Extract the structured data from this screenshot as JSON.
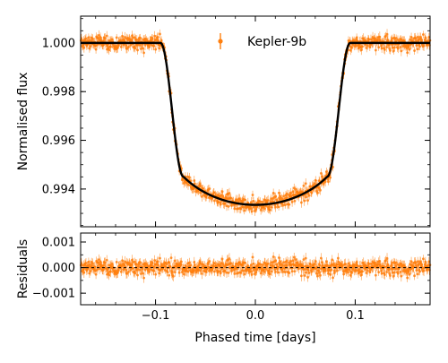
{
  "chart_data": {
    "type": "scatter",
    "colors": {
      "data": "#ff7f0e",
      "model": "#000000",
      "zero_line": "#000000"
    },
    "legend": {
      "placement": "top-right",
      "label": "Kepler-9b"
    },
    "x": {
      "label": "Phased time [days]",
      "lim": [
        -0.175,
        0.175
      ],
      "ticks": [
        -0.1,
        0.0,
        0.1
      ],
      "tick_labels": [
        "−0.1",
        "0.0",
        "0.1"
      ],
      "minor_step": 0.02
    },
    "top_panel": {
      "ylabel": "Normalised flux",
      "ylim": [
        0.99245,
        1.0011
      ],
      "yticks": [
        0.994,
        0.996,
        0.998,
        1.0
      ],
      "ytick_labels": [
        "0.994",
        "0.996",
        "0.998",
        "1.000"
      ],
      "minor_step": 0.0005,
      "model": {
        "baseline": 1.0,
        "depth": 0.00665,
        "t_first": 0.095,
        "t_second": 0.072,
        "limb_darkening": 0.5
      },
      "data": {
        "n_points": 760,
        "error_bar": 0.00018,
        "scatter": 0.00015
      }
    },
    "bottom_panel": {
      "ylabel": "Residuals",
      "ylim": [
        -0.00145,
        0.00135
      ],
      "yticks": [
        -0.001,
        0.0,
        0.001
      ],
      "ytick_labels": [
        "−0.001",
        "0.000",
        "0.001"
      ],
      "minor_step": 0.0005,
      "zero_line": true
    }
  }
}
